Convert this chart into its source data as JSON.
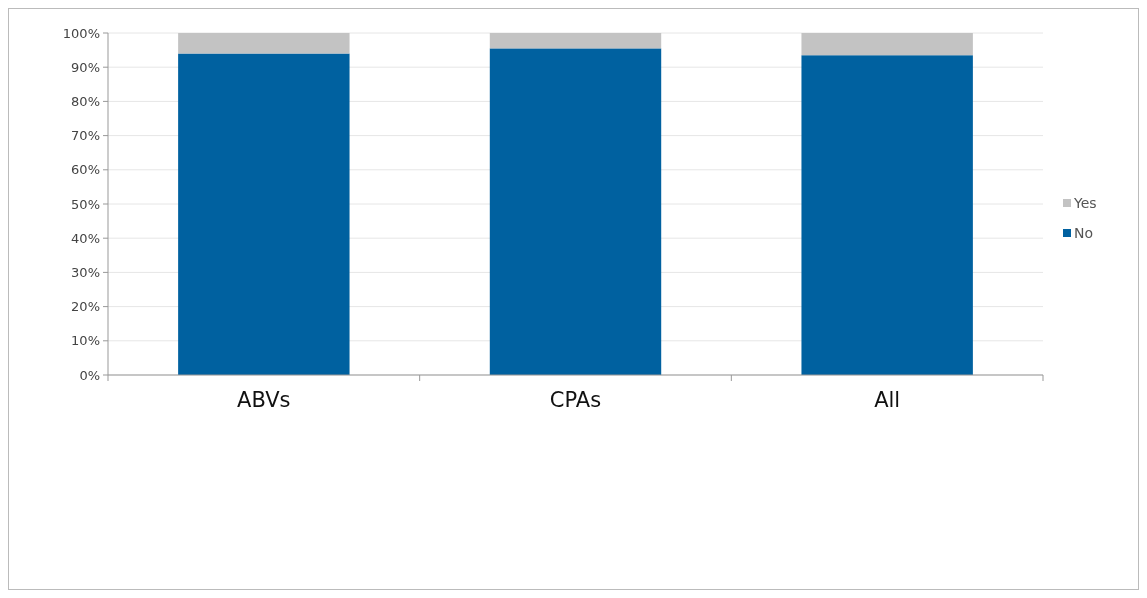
{
  "chart_data": {
    "type": "bar",
    "stacked": true,
    "categories": [
      "ABVs",
      "CPAs",
      "All"
    ],
    "series": [
      {
        "name": "No",
        "color": "#0061a0",
        "values": [
          94,
          95.5,
          93.5
        ]
      },
      {
        "name": "Yes",
        "color": "#c3c3c3",
        "values": [
          6,
          4.5,
          6.5
        ]
      }
    ],
    "ylim": [
      0,
      100
    ],
    "yticks": [
      {
        "value": 0,
        "label": "0%"
      },
      {
        "value": 10,
        "label": "10%"
      },
      {
        "value": 20,
        "label": "20%"
      },
      {
        "value": 30,
        "label": "30%"
      },
      {
        "value": 40,
        "label": "40%"
      },
      {
        "value": 50,
        "label": "50%"
      },
      {
        "value": 60,
        "label": "60%"
      },
      {
        "value": 70,
        "label": "70%"
      },
      {
        "value": 80,
        "label": "80%"
      },
      {
        "value": 90,
        "label": "90%"
      },
      {
        "value": 100,
        "label": "100%"
      }
    ],
    "grid": "y",
    "legend": "right"
  }
}
